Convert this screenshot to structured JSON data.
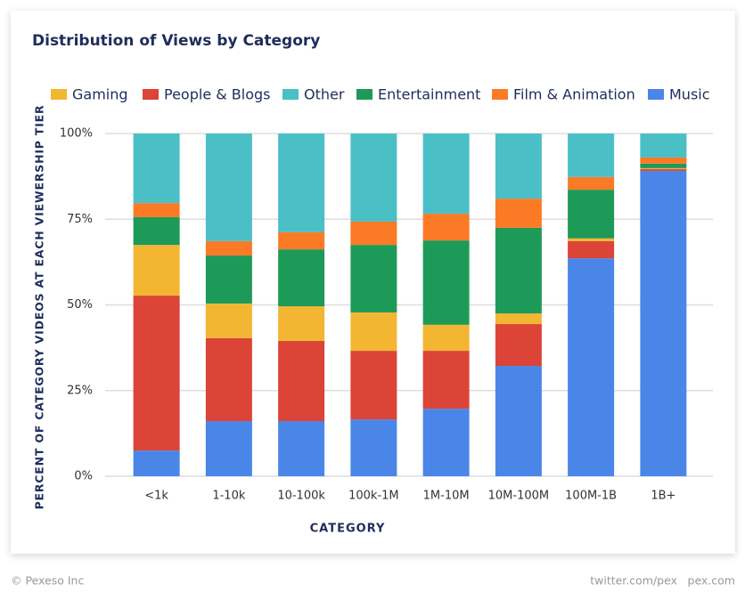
{
  "chart_data": {
    "type": "stacked_bar",
    "title": "Distribution of Views by Category",
    "x_label": "CATEGORY",
    "y_label": "PERCENT OF CATEGORY VIDEOS AT EACH VIEWERSHIP TIER",
    "categories": [
      "<1k",
      "1-10k",
      "10-100k",
      "100k-1M",
      "1M-10M",
      "10M-100M",
      "100M-1B",
      "1B+"
    ],
    "series": [
      {
        "name": "Music",
        "color": "#4a86e8",
        "values": [
          7.5,
          16.1,
          16.1,
          16.6,
          19.7,
          32.2,
          63.6,
          89.1
        ]
      },
      {
        "name": "People & Blogs",
        "color": "#db4437",
        "values": [
          45.2,
          24.2,
          23.4,
          20.0,
          16.9,
          12.2,
          5.0,
          0.5
        ]
      },
      {
        "name": "Gaming",
        "color": "#f2b632",
        "values": [
          14.8,
          10.1,
          10.1,
          11.2,
          7.6,
          3.1,
          0.8,
          0.3
        ]
      },
      {
        "name": "Entertainment",
        "color": "#1e9a58",
        "values": [
          8.1,
          14.0,
          16.6,
          19.7,
          24.6,
          25.0,
          14.2,
          1.3
        ]
      },
      {
        "name": "Film & Animation",
        "color": "#fb7a26",
        "values": [
          4.1,
          4.2,
          5.0,
          6.8,
          7.8,
          8.5,
          3.7,
          1.8
        ]
      },
      {
        "name": "Other",
        "color": "#4bbfc6",
        "values": [
          20.3,
          31.4,
          28.8,
          25.7,
          23.4,
          19.0,
          12.7,
          7.0
        ]
      }
    ],
    "legend_order": [
      2,
      1,
      5,
      3,
      4,
      0
    ],
    "ylim": [
      0,
      100
    ],
    "yticks": [
      {
        "value": 0,
        "label": "0%"
      },
      {
        "value": 25,
        "label": "25%"
      },
      {
        "value": 50,
        "label": "50%"
      },
      {
        "value": 75,
        "label": "75%"
      },
      {
        "value": 100,
        "label": "100%"
      }
    ],
    "grid": true
  },
  "footer": {
    "copyright": "© Pexeso Inc",
    "twitter": "twitter.com/pex",
    "site": "pex.com"
  }
}
